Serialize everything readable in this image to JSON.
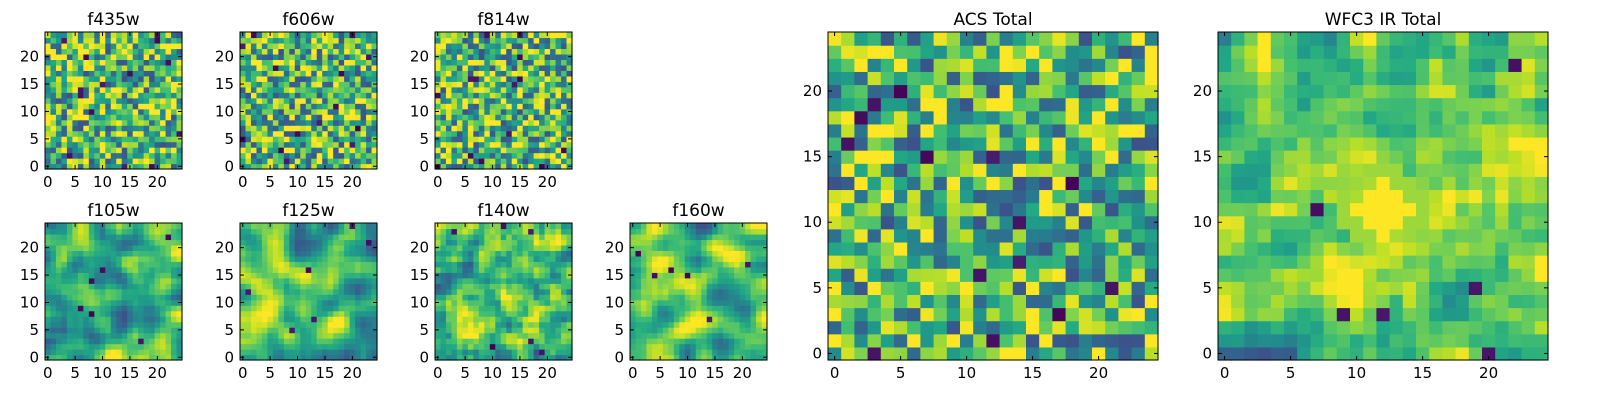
{
  "chart_data": [
    {
      "type": "heatmap",
      "title": "f435w",
      "xticks": [
        "0",
        "5",
        "10",
        "15",
        "20"
      ],
      "yticks": [
        "0",
        "5",
        "10",
        "15",
        "20"
      ],
      "xlim": [
        -0.5,
        24.5
      ],
      "ylim": [
        -0.5,
        24.5
      ],
      "grid_size": 25,
      "seed": 11,
      "smoothing": 0,
      "colormap": "viridis",
      "value_range": [
        0,
        1
      ]
    },
    {
      "type": "heatmap",
      "title": "f606w",
      "xticks": [
        "0",
        "5",
        "10",
        "15",
        "20"
      ],
      "yticks": [
        "0",
        "5",
        "10",
        "15",
        "20"
      ],
      "xlim": [
        -0.5,
        24.5
      ],
      "ylim": [
        -0.5,
        24.5
      ],
      "grid_size": 25,
      "seed": 23,
      "smoothing": 0,
      "colormap": "viridis",
      "value_range": [
        0,
        1
      ]
    },
    {
      "type": "heatmap",
      "title": "f814w",
      "xticks": [
        "0",
        "5",
        "10",
        "15",
        "20"
      ],
      "yticks": [
        "0",
        "5",
        "10",
        "15",
        "20"
      ],
      "xlim": [
        -0.5,
        24.5
      ],
      "ylim": [
        -0.5,
        24.5
      ],
      "grid_size": 25,
      "seed": 37,
      "smoothing": 0,
      "colormap": "viridis",
      "value_range": [
        0,
        1
      ]
    },
    {
      "type": "heatmap",
      "title": "f105w",
      "xticks": [
        "0",
        "5",
        "10",
        "15",
        "20"
      ],
      "yticks": [
        "0",
        "5",
        "10",
        "15",
        "20"
      ],
      "xlim": [
        -0.5,
        24.5
      ],
      "ylim": [
        -0.5,
        24.5
      ],
      "grid_size": 25,
      "seed": 41,
      "smoothing": 2,
      "colormap": "viridis",
      "value_range": [
        0,
        1
      ]
    },
    {
      "type": "heatmap",
      "title": "f125w",
      "xticks": [
        "0",
        "5",
        "10",
        "15",
        "20"
      ],
      "yticks": [
        "0",
        "5",
        "10",
        "15",
        "20"
      ],
      "xlim": [
        -0.5,
        24.5
      ],
      "ylim": [
        -0.5,
        24.5
      ],
      "grid_size": 25,
      "seed": 53,
      "smoothing": 2,
      "colormap": "viridis",
      "value_range": [
        0,
        1
      ]
    },
    {
      "type": "heatmap",
      "title": "f140w",
      "xticks": [
        "0",
        "5",
        "10",
        "15",
        "20"
      ],
      "yticks": [
        "0",
        "5",
        "10",
        "15",
        "20"
      ],
      "xlim": [
        -0.5,
        24.5
      ],
      "ylim": [
        -0.5,
        24.5
      ],
      "grid_size": 25,
      "seed": 67,
      "smoothing": 1,
      "colormap": "viridis",
      "value_range": [
        0,
        1
      ]
    },
    {
      "type": "heatmap",
      "title": "f160w",
      "xticks": [
        "0",
        "5",
        "10",
        "15",
        "20"
      ],
      "yticks": [
        "0",
        "5",
        "10",
        "15",
        "20"
      ],
      "xlim": [
        -0.5,
        24.5
      ],
      "ylim": [
        -0.5,
        24.5
      ],
      "grid_size": 25,
      "seed": 71,
      "smoothing": 2,
      "colormap": "viridis",
      "value_range": [
        0,
        1
      ]
    },
    {
      "type": "heatmap",
      "title": "ACS Total",
      "xticks": [
        "0",
        "5",
        "10",
        "15",
        "20"
      ],
      "yticks": [
        "0",
        "5",
        "10",
        "15",
        "20"
      ],
      "xlim": [
        -0.5,
        24.5
      ],
      "ylim": [
        -0.5,
        24.5
      ],
      "grid_size": 25,
      "seed": 83,
      "smoothing": 0,
      "colormap": "viridis",
      "value_range": [
        0,
        1
      ]
    },
    {
      "type": "heatmap",
      "title": "WFC3 IR Total",
      "xticks": [
        "0",
        "5",
        "10",
        "15",
        "20"
      ],
      "yticks": [
        "0",
        "5",
        "10",
        "15",
        "20"
      ],
      "xlim": [
        -0.5,
        24.5
      ],
      "ylim": [
        -0.5,
        24.5
      ],
      "grid_size": 25,
      "seed": 97,
      "smoothing": 1,
      "colormap": "viridis",
      "value_range": [
        0,
        1
      ],
      "bright_source": {
        "x": 12,
        "y": 11,
        "radius": 2
      }
    }
  ]
}
